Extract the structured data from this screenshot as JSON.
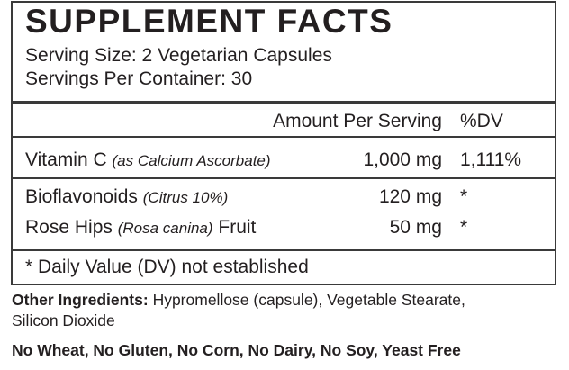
{
  "title": "SUPPLEMENT FACTS",
  "serving_size": "Serving Size: 2 Vegetarian Capsules",
  "servings_per_container": "Servings Per Container: 30",
  "header": {
    "amount": "Amount Per Serving",
    "dv": "%DV"
  },
  "rows": [
    {
      "name": "Vitamin C",
      "note": "(as Calcium Ascorbate)",
      "suffix": "",
      "amount": "1,000 mg",
      "dv": "1,111%"
    },
    {
      "name": "Bioflavonoids",
      "note": "(Citrus 10%)",
      "suffix": "",
      "amount": "120 mg",
      "dv": "*"
    },
    {
      "name": "Rose Hips",
      "note": "(Rosa canina)",
      "suffix": "Fruit",
      "amount": "50 mg",
      "dv": "*"
    }
  ],
  "footnote": "* Daily Value (DV) not established",
  "other_ingredients": {
    "label": "Other Ingredients:",
    "text": "Hypromellose (capsule), Vegetable Stearate,",
    "text2": "Silicon Dioxide"
  },
  "free_from": "No Wheat, No Gluten, No Corn, No Dairy, No Soy, Yeast Free"
}
